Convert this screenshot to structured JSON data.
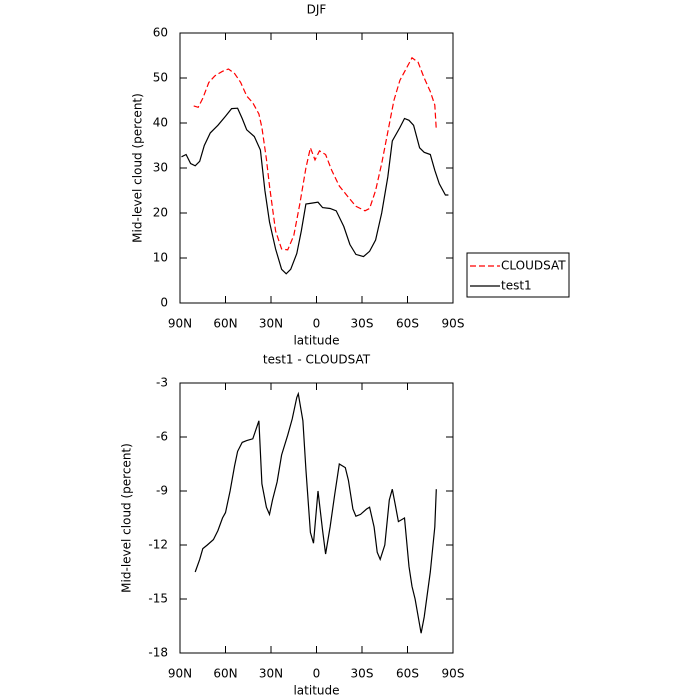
{
  "chart_data": [
    {
      "type": "line",
      "title": "DJF",
      "y_label": "Mid-level cloud (percent)",
      "x_label": "latitude",
      "xlim": [
        90,
        -90
      ],
      "ylim": [
        0,
        60
      ],
      "xticks": [
        {
          "value": 90,
          "label": "90N"
        },
        {
          "value": 60,
          "label": "60N"
        },
        {
          "value": 30,
          "label": "30N"
        },
        0,
        {
          "value": -30,
          "label": "30S"
        },
        {
          "value": -60,
          "label": "60S"
        },
        {
          "value": -90,
          "label": "90S"
        }
      ],
      "yticks": [
        0,
        10,
        20,
        30,
        40,
        50,
        60
      ],
      "legend": "right",
      "series": [
        {
          "name": "CLOUDSAT",
          "color": "#ff0000",
          "style": "dashed",
          "x": [
            81,
            78,
            75,
            71,
            67,
            62,
            58,
            54,
            50,
            46,
            42,
            38,
            36,
            33,
            31,
            27,
            23,
            19,
            15,
            11,
            7,
            4,
            1,
            -2,
            -6,
            -10,
            -15,
            -21,
            -26,
            -32,
            -35,
            -39,
            -43,
            -47,
            -51,
            -55,
            -59,
            -63,
            -67,
            -71,
            -75,
            -78,
            -79
          ],
          "values": [
            43.8,
            43.5,
            45.5,
            49,
            50.5,
            51.5,
            52,
            51,
            49,
            46,
            44.5,
            42,
            39,
            32,
            26,
            16,
            12,
            11.8,
            15,
            22,
            30,
            34.5,
            31.8,
            33.8,
            33,
            29.5,
            26,
            23.5,
            21.5,
            20.5,
            21,
            25,
            31,
            38,
            45,
            49.5,
            52,
            54.5,
            53.5,
            50,
            47,
            44,
            38.5
          ]
        },
        {
          "name": "test1",
          "color": "#000000",
          "style": "solid",
          "x": [
            89,
            86,
            83,
            80,
            77,
            74,
            70,
            65,
            60,
            56,
            52,
            49,
            46,
            41,
            37,
            34,
            31,
            27,
            23,
            20,
            17,
            13,
            10,
            7,
            3,
            -1,
            -4,
            -9,
            -13,
            -18,
            -22,
            -26,
            -31,
            -35,
            -39,
            -43,
            -47,
            -50,
            -55,
            -58,
            -61,
            -64,
            -68,
            -71,
            -75,
            -78,
            -81,
            -85,
            -87
          ],
          "values": [
            32.5,
            33,
            31,
            30.5,
            31.5,
            35,
            37.8,
            39.5,
            41.5,
            43.2,
            43.3,
            41,
            38.5,
            37,
            34,
            25,
            18,
            12,
            7.5,
            6.5,
            7.5,
            11,
            16,
            22,
            22.2,
            22.4,
            21.2,
            21,
            20.5,
            17,
            13,
            10.8,
            10.3,
            11.5,
            14,
            20,
            28,
            36,
            39,
            41,
            40.6,
            39.5,
            34.5,
            33.5,
            33,
            29.5,
            26.5,
            24,
            24
          ]
        }
      ]
    },
    {
      "type": "line",
      "title": "test1 - CLOUDSAT",
      "y_label": "Mid-level cloud (percent)",
      "x_label": "latitude",
      "xlim": [
        90,
        -90
      ],
      "ylim": [
        -18,
        -3
      ],
      "xticks": [
        {
          "value": 90,
          "label": "90N"
        },
        {
          "value": 60,
          "label": "60N"
        },
        {
          "value": 30,
          "label": "30N"
        },
        0,
        {
          "value": -30,
          "label": "30S"
        },
        {
          "value": -60,
          "label": "60S"
        },
        {
          "value": -90,
          "label": "90S"
        }
      ],
      "yticks": [
        -18,
        -15,
        -12,
        -9,
        -6,
        -3
      ],
      "color": "#000000",
      "x": [
        80,
        77,
        75,
        72,
        68,
        65,
        62,
        60,
        57,
        54,
        52,
        49,
        46,
        42,
        38,
        36,
        33,
        31,
        29,
        26,
        23,
        19,
        16,
        13,
        12,
        9,
        7,
        4,
        2,
        -1,
        -4,
        -6,
        -9,
        -12,
        -15,
        -19,
        -21,
        -24,
        -26,
        -29,
        -33,
        -35,
        -38,
        -40,
        -42,
        -45,
        -48,
        -50,
        -52,
        -54,
        -58,
        -61,
        -63,
        -65,
        -69,
        -71,
        -75,
        -78,
        -79
      ],
      "values": [
        -13.5,
        -12.8,
        -12.2,
        -12,
        -11.7,
        -11.2,
        -10.5,
        -10.2,
        -9,
        -7.6,
        -6.8,
        -6.3,
        -6.2,
        -6.1,
        -5.1,
        -8.6,
        -9.9,
        -10.3,
        -9.5,
        -8.5,
        -7,
        -5.9,
        -5,
        -3.8,
        -3.6,
        -5.1,
        -7.8,
        -11.3,
        -11.9,
        -9,
        -11.2,
        -12.5,
        -11,
        -9.2,
        -7.5,
        -7.7,
        -8.4,
        -10,
        -10.4,
        -10.3,
        -10,
        -9.9,
        -11,
        -12.4,
        -12.8,
        -12,
        -9.5,
        -8.9,
        -9.8,
        -10.7,
        -10.5,
        -13.2,
        -14.3,
        -15,
        -16.9,
        -16,
        -13.5,
        -11,
        -8.9
      ]
    }
  ]
}
